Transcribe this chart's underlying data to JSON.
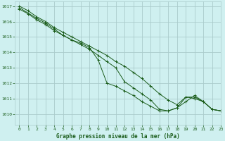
{
  "title": "Graphe pression niveau de la mer (hPa)",
  "bg_color": "#cff0f0",
  "grid_color": "#aacccc",
  "line_color": "#1a5c1a",
  "xlim": [
    -0.5,
    23
  ],
  "ylim": [
    1009.3,
    1017.3
  ],
  "yticks": [
    1010,
    1011,
    1012,
    1013,
    1014,
    1015,
    1016,
    1017
  ],
  "xticks": [
    0,
    1,
    2,
    3,
    4,
    5,
    6,
    7,
    8,
    9,
    10,
    11,
    12,
    13,
    14,
    15,
    16,
    17,
    18,
    19,
    20,
    21,
    22,
    23
  ],
  "series": [
    {
      "x": [
        0,
        1,
        2,
        3,
        4,
        5,
        6,
        7,
        8,
        9,
        10,
        11,
        12,
        13,
        14,
        15,
        16,
        17,
        18,
        19,
        20,
        21,
        22,
        23
      ],
      "y": [
        1017.0,
        1016.7,
        1016.3,
        1016.0,
        1015.6,
        1015.3,
        1015.0,
        1014.7,
        1014.4,
        1014.1,
        1013.8,
        1013.4,
        1013.1,
        1012.7,
        1012.3,
        1011.8,
        1011.3,
        1010.9,
        1010.6,
        1011.1,
        1011.0,
        1010.8,
        1010.3,
        1010.2
      ]
    },
    {
      "x": [
        0,
        1,
        2,
        3,
        4,
        5,
        6,
        7,
        8,
        9,
        10,
        11,
        12,
        13,
        14,
        15,
        16,
        17,
        18,
        19,
        20,
        21,
        22,
        23
      ],
      "y": [
        1016.8,
        1016.5,
        1016.1,
        1015.8,
        1015.4,
        1015.1,
        1014.8,
        1014.5,
        1014.2,
        1013.8,
        1013.4,
        1013.0,
        1012.1,
        1011.7,
        1011.3,
        1010.9,
        1010.3,
        1010.2,
        1010.4,
        1011.1,
        1011.1,
        1010.8,
        1010.3,
        1010.2
      ]
    },
    {
      "x": [
        0,
        2,
        3,
        4,
        5,
        6,
        7,
        8,
        9,
        10,
        11,
        12,
        13,
        14,
        15,
        16,
        17,
        18,
        19,
        20,
        21,
        22,
        23
      ],
      "y": [
        1016.9,
        1016.2,
        1015.9,
        1015.5,
        1015.1,
        1014.8,
        1014.6,
        1014.3,
        1013.5,
        1012.0,
        1011.8,
        1011.5,
        1011.2,
        1010.8,
        1010.5,
        1010.2,
        1010.2,
        1010.4,
        1010.8,
        1011.2,
        1010.8,
        1010.3,
        1010.2
      ]
    }
  ]
}
